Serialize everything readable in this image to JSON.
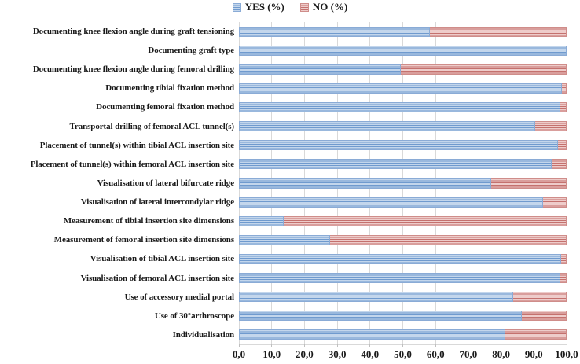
{
  "chart": {
    "legend": [
      {
        "label": "YES (%)",
        "key": "yes"
      },
      {
        "label": "NO (%)",
        "key": "no"
      }
    ],
    "colors": {
      "yes_base": "#c3d6ec",
      "yes_stripe": "#6f9ace",
      "yes_border": "#8aabd6",
      "no_base": "#eeccca",
      "no_stripe": "#c4716e",
      "no_border": "#cf8d8a",
      "grid": "#d9d9d9",
      "tick": "#bfbfbf",
      "text": "#1a1a1a"
    }
  },
  "chart_data": {
    "type": "bar",
    "orientation": "horizontal",
    "stacked": true,
    "title": "",
    "xlabel": "",
    "ylabel": "",
    "xlim": [
      0,
      100
    ],
    "grid": true,
    "legend_position": "top",
    "x_tick_labels": [
      "0,0",
      "10,0",
      "20,0",
      "30,0",
      "40,0",
      "50,0",
      "60,0",
      "70,0",
      "80,0",
      "90,0",
      "100,0"
    ],
    "x_tick_values": [
      0,
      10,
      20,
      30,
      40,
      50,
      60,
      70,
      80,
      90,
      100
    ],
    "categories": [
      "Documenting knee flexion angle during graft tensioning",
      "Documenting graft type",
      "Documenting knee flexion angle during femoral drilling",
      "Documenting tibial fixation method",
      "Documenting femoral fixation method",
      "Transportal drilling of femoral ACL tunnel(s)",
      "Placement of tunnel(s) within tibial ACL insertion site",
      "Placement of tunnel(s) within femoral ACL insertion site",
      "Visualisation of lateral bifurcate ridge",
      "Visualisation of lateral intercondylar ridge",
      "Measurement of tibial insertion site dimensions",
      "Measurement of  femoral insertion site dimensions",
      "Visualisation of tibial ACL insertion site",
      "Visualisation of femoral ACL insertion site",
      "Use of accessory medial portal",
      "Use of 30°arthroscope",
      "Individualisation"
    ],
    "series": [
      {
        "name": "YES (%)",
        "values": [
          58.3,
          100.0,
          49.4,
          98.6,
          98.0,
          90.3,
          97.4,
          95.5,
          77.0,
          92.8,
          13.6,
          27.8,
          98.4,
          98.0,
          83.8,
          86.4,
          81.4
        ]
      },
      {
        "name": "NO (%)",
        "values": [
          41.7,
          0.0,
          50.6,
          1.4,
          2.0,
          9.7,
          2.6,
          4.5,
          23.0,
          7.2,
          86.4,
          72.2,
          1.6,
          2.0,
          16.2,
          13.6,
          18.6
        ]
      }
    ]
  }
}
